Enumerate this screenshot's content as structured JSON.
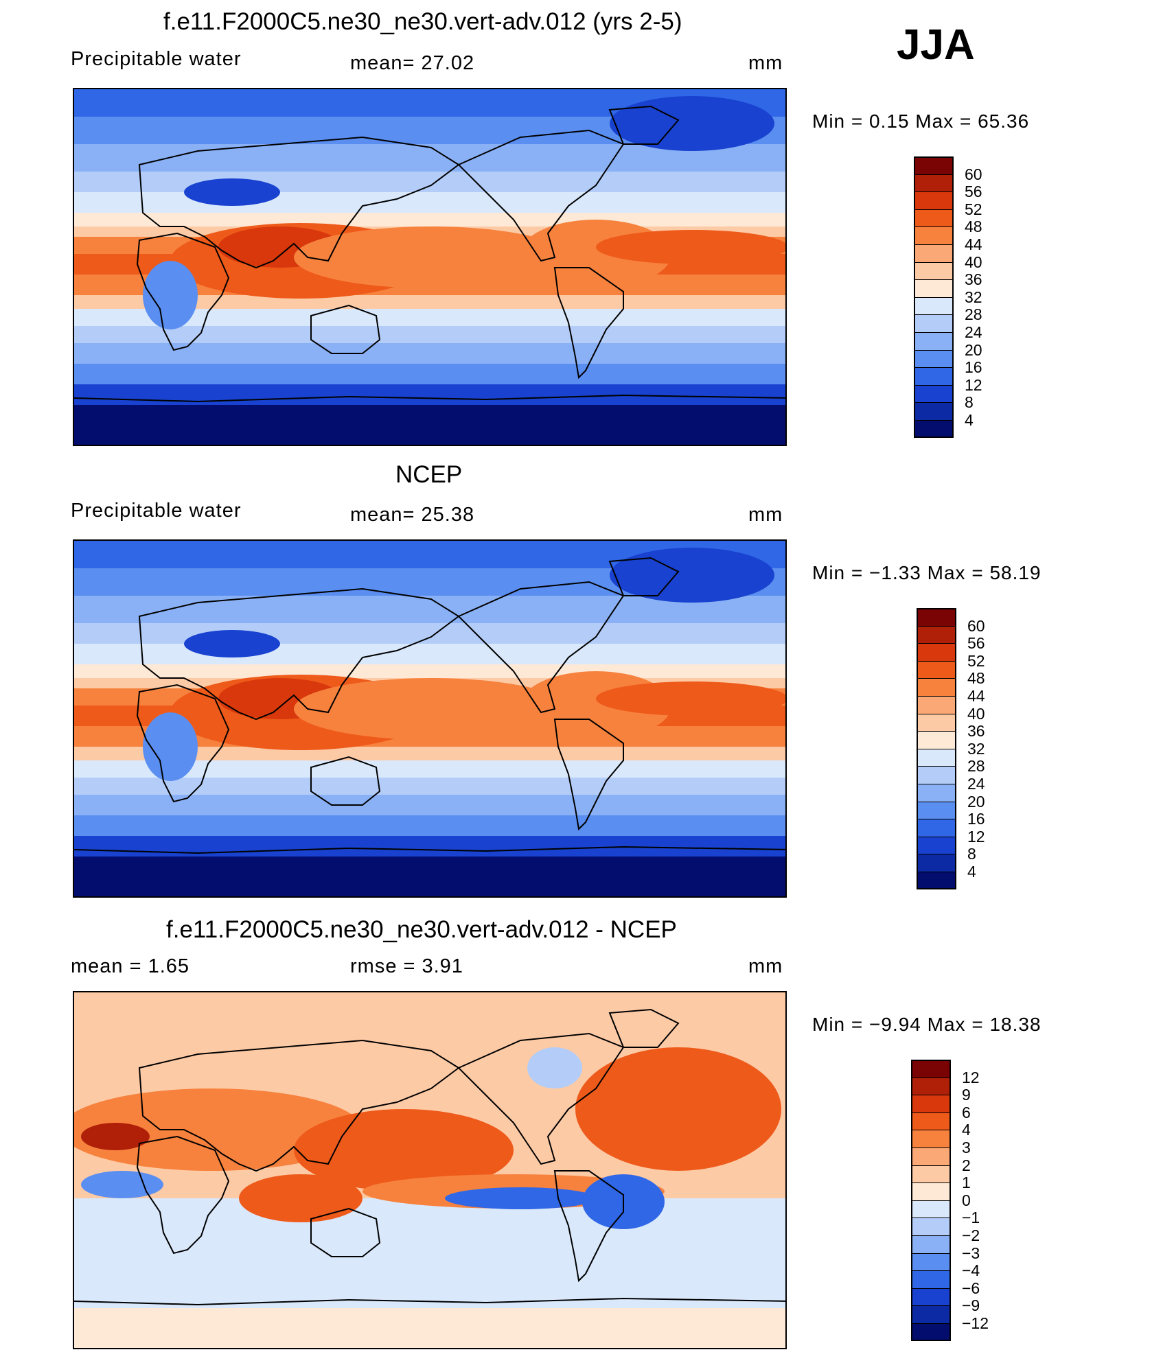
{
  "season": "JJA",
  "panels": [
    {
      "title": "f.e11.F2000C5.ne30_ne30.vert-adv.012 (yrs 2-5)",
      "left_text": "Precipitable  water",
      "center_text": "mean=   27.02",
      "units": "mm",
      "minmax": "Min  =     0.15  Max  =    65.36",
      "colorbar": {
        "labels": [
          "60",
          "56",
          "52",
          "48",
          "44",
          "40",
          "36",
          "32",
          "28",
          "24",
          "20",
          "16",
          "12",
          "8",
          "4"
        ],
        "colors": [
          "#7a0403",
          "#b01f08",
          "#d8380c",
          "#ee5a1a",
          "#f7823e",
          "#fba877",
          "#fdcaa6",
          "#fde9d6",
          "#d9e8fb",
          "#b3cdf8",
          "#8ab1f5",
          "#5a8ef0",
          "#2f67e6",
          "#1842cf",
          "#0c2aa3",
          "#020d6e"
        ]
      },
      "field_type": "absolute"
    },
    {
      "title": "NCEP",
      "left_text": "Precipitable  water",
      "center_text": "mean=   25.38",
      "units": "mm",
      "minmax": "Min  =   −1.33  Max  =    58.19",
      "colorbar": {
        "labels": [
          "60",
          "56",
          "52",
          "48",
          "44",
          "40",
          "36",
          "32",
          "28",
          "24",
          "20",
          "16",
          "12",
          "8",
          "4"
        ],
        "colors": [
          "#7a0403",
          "#b01f08",
          "#d8380c",
          "#ee5a1a",
          "#f7823e",
          "#fba877",
          "#fdcaa6",
          "#fde9d6",
          "#d9e8fb",
          "#b3cdf8",
          "#8ab1f5",
          "#5a8ef0",
          "#2f67e6",
          "#1842cf",
          "#0c2aa3",
          "#020d6e"
        ]
      },
      "field_type": "absolute"
    },
    {
      "title": "f.e11.F2000C5.ne30_ne30.vert-adv.012 - NCEP",
      "left_text": "mean  =      1.65",
      "center_text": "rmse  =      3.91",
      "units": "mm",
      "minmax": "Min  =   −9.94  Max  =    18.38",
      "colorbar": {
        "labels": [
          "12",
          "9",
          "6",
          "4",
          "3",
          "2",
          "1",
          "0",
          "−1",
          "−2",
          "−3",
          "−4",
          "−6",
          "−9",
          "−12"
        ],
        "colors": [
          "#7a0403",
          "#b01f08",
          "#d8380c",
          "#ee5a1a",
          "#f7823e",
          "#fba877",
          "#fdcaa6",
          "#fde9d6",
          "#d9e8fb",
          "#b3cdf8",
          "#8ab1f5",
          "#5a8ef0",
          "#2f67e6",
          "#1842cf",
          "#0c2aa3",
          "#020d6e"
        ]
      },
      "field_type": "difference"
    }
  ]
}
